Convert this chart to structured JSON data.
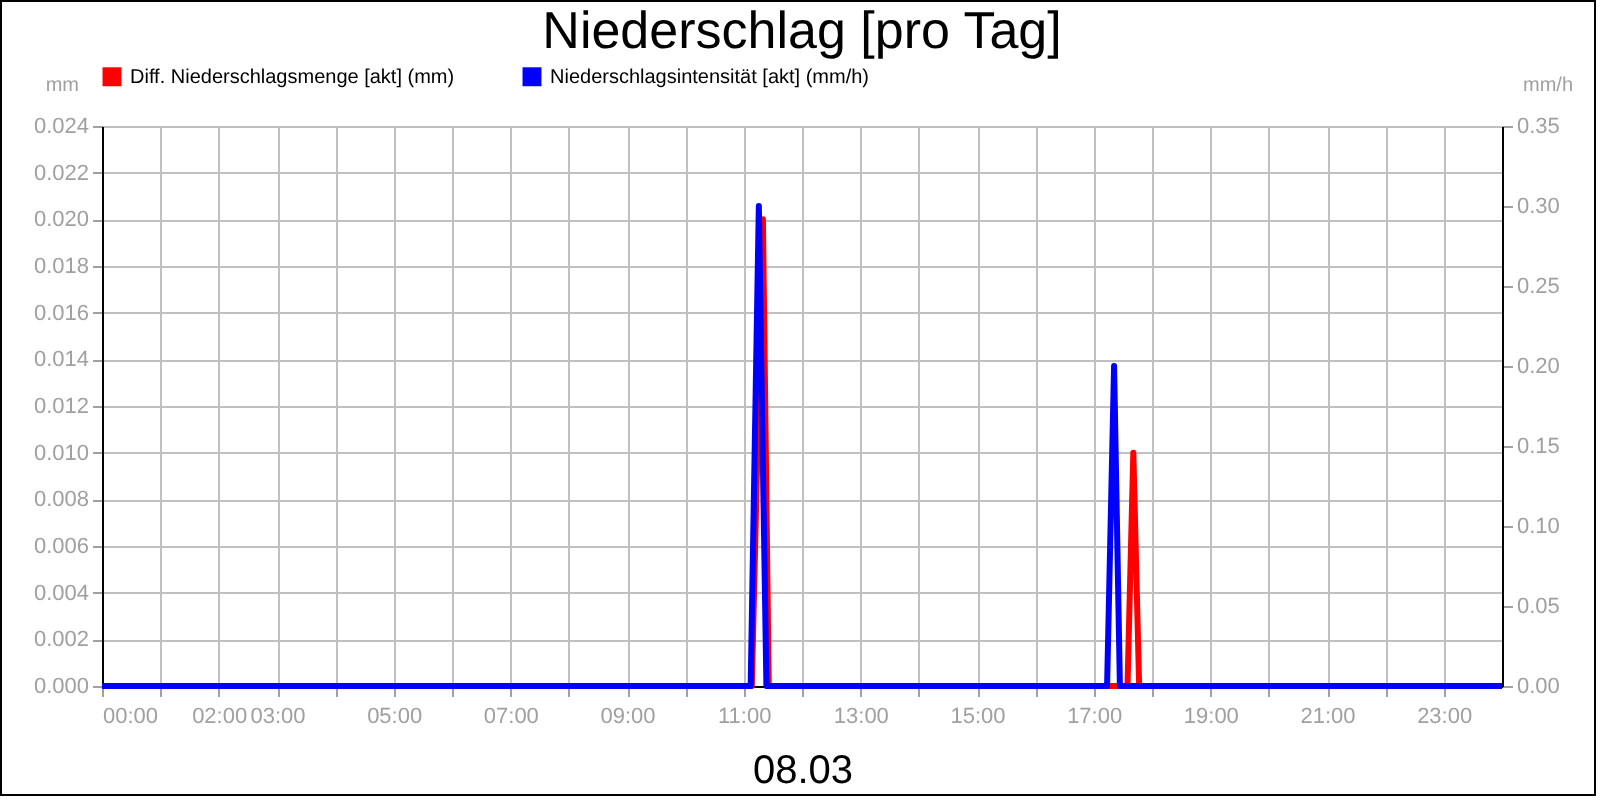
{
  "chart_data": {
    "type": "line",
    "title": "Niederschlag [pro Tag]",
    "xlabel": "08.03",
    "ylabel": "mm",
    "y2label": "mm/h",
    "xlim": [
      0,
      24
    ],
    "xticks": [
      {
        "value": 0,
        "label": "00:00"
      },
      {
        "value": 1,
        "label": null
      },
      {
        "value": 2,
        "label": "02:00"
      },
      {
        "value": 3,
        "label": "03:00"
      },
      {
        "value": 4,
        "label": null
      },
      {
        "value": 5,
        "label": "05:00"
      },
      {
        "value": 6,
        "label": null
      },
      {
        "value": 7,
        "label": "07:00"
      },
      {
        "value": 8,
        "label": null
      },
      {
        "value": 9,
        "label": "09:00"
      },
      {
        "value": 10,
        "label": null
      },
      {
        "value": 11,
        "label": "11:00"
      },
      {
        "value": 12,
        "label": null
      },
      {
        "value": 13,
        "label": "13:00"
      },
      {
        "value": 14,
        "label": null
      },
      {
        "value": 15,
        "label": "15:00"
      },
      {
        "value": 16,
        "label": null
      },
      {
        "value": 17,
        "label": "17:00"
      },
      {
        "value": 18,
        "label": null
      },
      {
        "value": 19,
        "label": "19:00"
      },
      {
        "value": 20,
        "label": null
      },
      {
        "value": 21,
        "label": "21:00"
      },
      {
        "value": 22,
        "label": null
      },
      {
        "value": 23,
        "label": "23:00"
      }
    ],
    "ylim": [
      0,
      0.024
    ],
    "yticks": [
      {
        "value": 0,
        "label": "0.000"
      },
      {
        "value": 0.002,
        "label": "0.002"
      },
      {
        "value": 0.004,
        "label": "0.004"
      },
      {
        "value": 0.006,
        "label": "0.006"
      },
      {
        "value": 0.008,
        "label": "0.008"
      },
      {
        "value": 0.01,
        "label": "0.010"
      },
      {
        "value": 0.012,
        "label": "0.012"
      },
      {
        "value": 0.014,
        "label": "0.014"
      },
      {
        "value": 0.016,
        "label": "0.016"
      },
      {
        "value": 0.018,
        "label": "0.018"
      },
      {
        "value": 0.02,
        "label": "0.020"
      },
      {
        "value": 0.022,
        "label": "0.022"
      },
      {
        "value": 0.024,
        "label": "0.024"
      }
    ],
    "y2lim": [
      0,
      0.35
    ],
    "y2ticks": [
      {
        "value": 0,
        "label": "0.00"
      },
      {
        "value": 0.05,
        "label": "0.05"
      },
      {
        "value": 0.1,
        "label": "0.10"
      },
      {
        "value": 0.15,
        "label": "0.15"
      },
      {
        "value": 0.2,
        "label": "0.20"
      },
      {
        "value": 0.25,
        "label": "0.25"
      },
      {
        "value": 0.3,
        "label": "0.30"
      },
      {
        "value": 0.35,
        "label": "0.35"
      }
    ],
    "grid": true,
    "legend": "top left",
    "series": [
      {
        "name": "Diff. Niederschlagsmenge [akt] (mm)",
        "color": "#ff0000",
        "x": [
          0,
          11.14,
          11.33,
          11.43,
          17.58,
          17.68,
          17.78,
          24
        ],
        "values": [
          0,
          0,
          0.02,
          0,
          0,
          0.01,
          0,
          0
        ]
      },
      {
        "name": "Niederschlagsintensität [akt] (mm/h)",
        "color": "#0000ff",
        "axis": "y2",
        "x": [
          0,
          11.12,
          11.26,
          11.39,
          17.23,
          17.35,
          17.45,
          24
        ],
        "values": [
          0,
          0,
          0.3,
          0,
          0,
          0.2,
          0,
          0
        ]
      }
    ]
  }
}
